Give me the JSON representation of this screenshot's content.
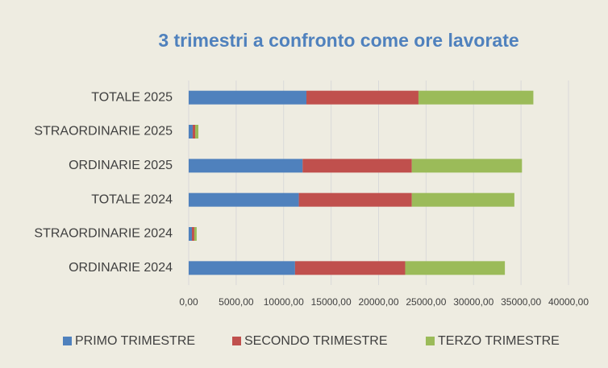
{
  "chart_data": {
    "type": "bar",
    "orientation": "horizontal",
    "stacked": true,
    "title": "3 trimestri a confronto come ore lavorate",
    "categories": [
      "TOTALE 2025",
      "STRAORDINARIE 2025",
      "ORDINARIE 2025",
      "TOTALE 2024",
      "STRAORDINARIE 2024",
      "ORDINARIE 2024"
    ],
    "series": [
      {
        "name": "PRIMO TRIMESTRE",
        "color": "#4f81bd",
        "values": [
          12400,
          420,
          12000,
          11600,
          340,
          11200
        ]
      },
      {
        "name": "SECONDO TRIMESTRE",
        "color": "#c0504d",
        "values": [
          11800,
          260,
          11500,
          11900,
          250,
          11600
        ]
      },
      {
        "name": "TERZO TRIMESTRE",
        "color": "#9bbb59",
        "values": [
          12100,
          340,
          11600,
          10800,
          250,
          10500
        ]
      }
    ],
    "xlim": [
      0,
      40000
    ],
    "xticks": [
      {
        "value": 0,
        "label": "0,00"
      },
      {
        "value": 5000,
        "label": "5000,00"
      },
      {
        "value": 10000,
        "label": "10000,00"
      },
      {
        "value": 15000,
        "label": "15000,00"
      },
      {
        "value": 20000,
        "label": "20000,00"
      },
      {
        "value": 25000,
        "label": "25000,00"
      },
      {
        "value": 30000,
        "label": "30000,00"
      },
      {
        "value": 35000,
        "label": "35000,00"
      },
      {
        "value": 40000,
        "label": "40000,00"
      }
    ],
    "grid": true,
    "legend": "bottom"
  }
}
